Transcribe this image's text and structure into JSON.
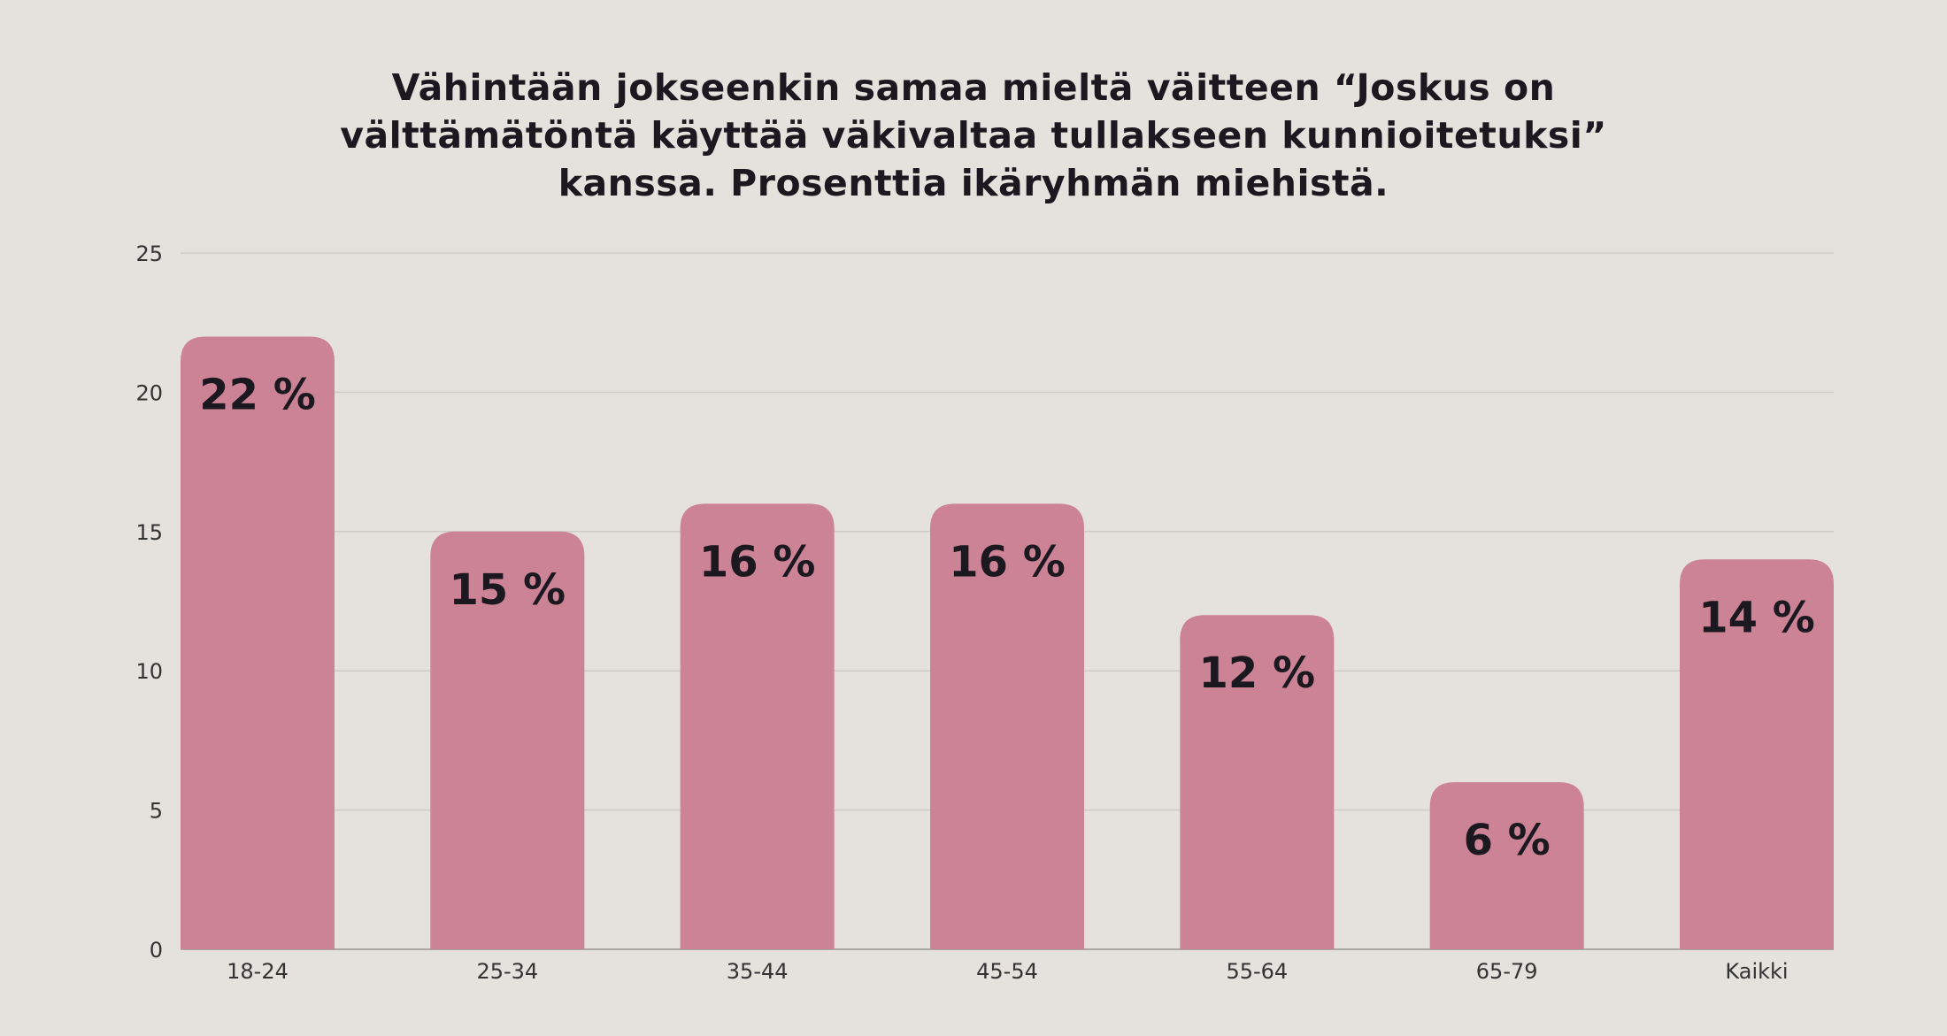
{
  "chart_data": {
    "type": "bar",
    "title": [
      "Vähintään jokseenkin samaa mieltä väitteen “Joskus on",
      "välttämätöntä käyttää väkivaltaa tullakseen kunnioitetuksi”",
      "kanssa. Prosenttia ikäryhmän miehistä."
    ],
    "categories": [
      "18-24",
      "25-34",
      "35-44",
      "45-54",
      "55-64",
      "65-79",
      "Kaikki"
    ],
    "values": [
      22,
      15,
      16,
      16,
      12,
      6,
      14
    ],
    "data_labels": [
      "22 %",
      "15 %",
      "16 %",
      "16 %",
      "12 %",
      "6 %",
      "14 %"
    ],
    "xlabel": "",
    "ylabel": "",
    "ylim": [
      0,
      25
    ],
    "yticks": [
      0,
      5,
      10,
      15,
      20,
      25
    ],
    "grid": true,
    "legend": "none",
    "colors": {
      "bar": "#cc8395",
      "background": "#e5e2dd",
      "gridline": "#cfccc7",
      "text": "#1c1820"
    }
  }
}
